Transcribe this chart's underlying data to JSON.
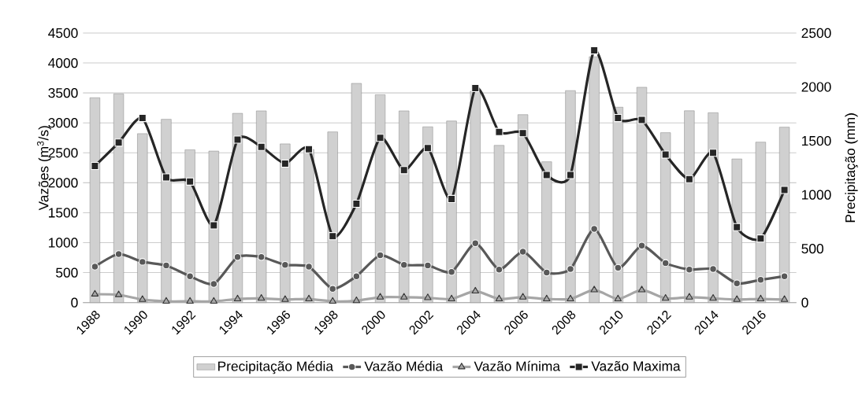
{
  "chart_data": {
    "type": "bar",
    "categories": [
      "1988",
      null,
      "1990",
      null,
      "1992",
      null,
      "1994",
      null,
      "1996",
      null,
      "1998",
      null,
      "2000",
      null,
      "2002",
      null,
      "2004",
      null,
      "2006",
      null,
      "2008",
      null,
      "2010",
      null,
      "2012",
      null,
      "2014",
      null,
      "2016",
      null
    ],
    "series": [
      {
        "name": "Precipitação Média",
        "axis": "y2",
        "color": "#d0d0d0",
        "values": [
          1900,
          1935,
          1567,
          1700,
          1417,
          1405,
          1755,
          1778,
          1472,
          1420,
          1583,
          2033,
          1928,
          1778,
          1630,
          1684,
          1960,
          1458,
          1743,
          1306,
          1966,
          2280,
          1812,
          1997,
          1576,
          1779,
          1761,
          1332,
          1488,
          1627
        ]
      },
      {
        "name": "Vazão Média",
        "type": "line",
        "marker": "circle",
        "color": "#595959",
        "values": [
          600,
          810,
          680,
          620,
          440,
          310,
          760,
          760,
          630,
          600,
          230,
          440,
          790,
          630,
          620,
          510,
          990,
          550,
          850,
          500,
          560,
          1230,
          580,
          950,
          660,
          550,
          560,
          320,
          380,
          440
        ]
      },
      {
        "name": "Vazão Mínima",
        "type": "line",
        "marker": "triangle",
        "color": "#a6a6a6",
        "values": [
          140,
          130,
          50,
          20,
          20,
          20,
          60,
          70,
          50,
          60,
          20,
          30,
          90,
          90,
          80,
          60,
          190,
          60,
          90,
          60,
          60,
          210,
          60,
          210,
          70,
          90,
          70,
          50,
          60,
          50
        ]
      },
      {
        "name": "Vazão Maxima",
        "type": "line",
        "marker": "square",
        "color": "#262626",
        "values": [
          2280,
          2670,
          3080,
          2090,
          2020,
          1290,
          2720,
          2600,
          2320,
          2560,
          1110,
          1650,
          2750,
          2210,
          2580,
          1730,
          3580,
          2850,
          2830,
          2130,
          2130,
          4210,
          3080,
          3050,
          2470,
          2060,
          2500,
          1260,
          1070,
          1880
        ]
      }
    ],
    "ylabel": "Vazões (m$^{3}$/s)",
    "y2label": "Precipitação (mm)",
    "ylim": [
      0,
      4500
    ],
    "yticks": [
      0,
      500,
      1000,
      1500,
      2000,
      2500,
      3000,
      3500,
      4000,
      4500
    ],
    "y2lim": [
      0,
      2500
    ],
    "y2ticks": [
      0,
      500,
      1000,
      1500,
      2000,
      2500
    ],
    "grid": "y",
    "legend": "bottom"
  }
}
